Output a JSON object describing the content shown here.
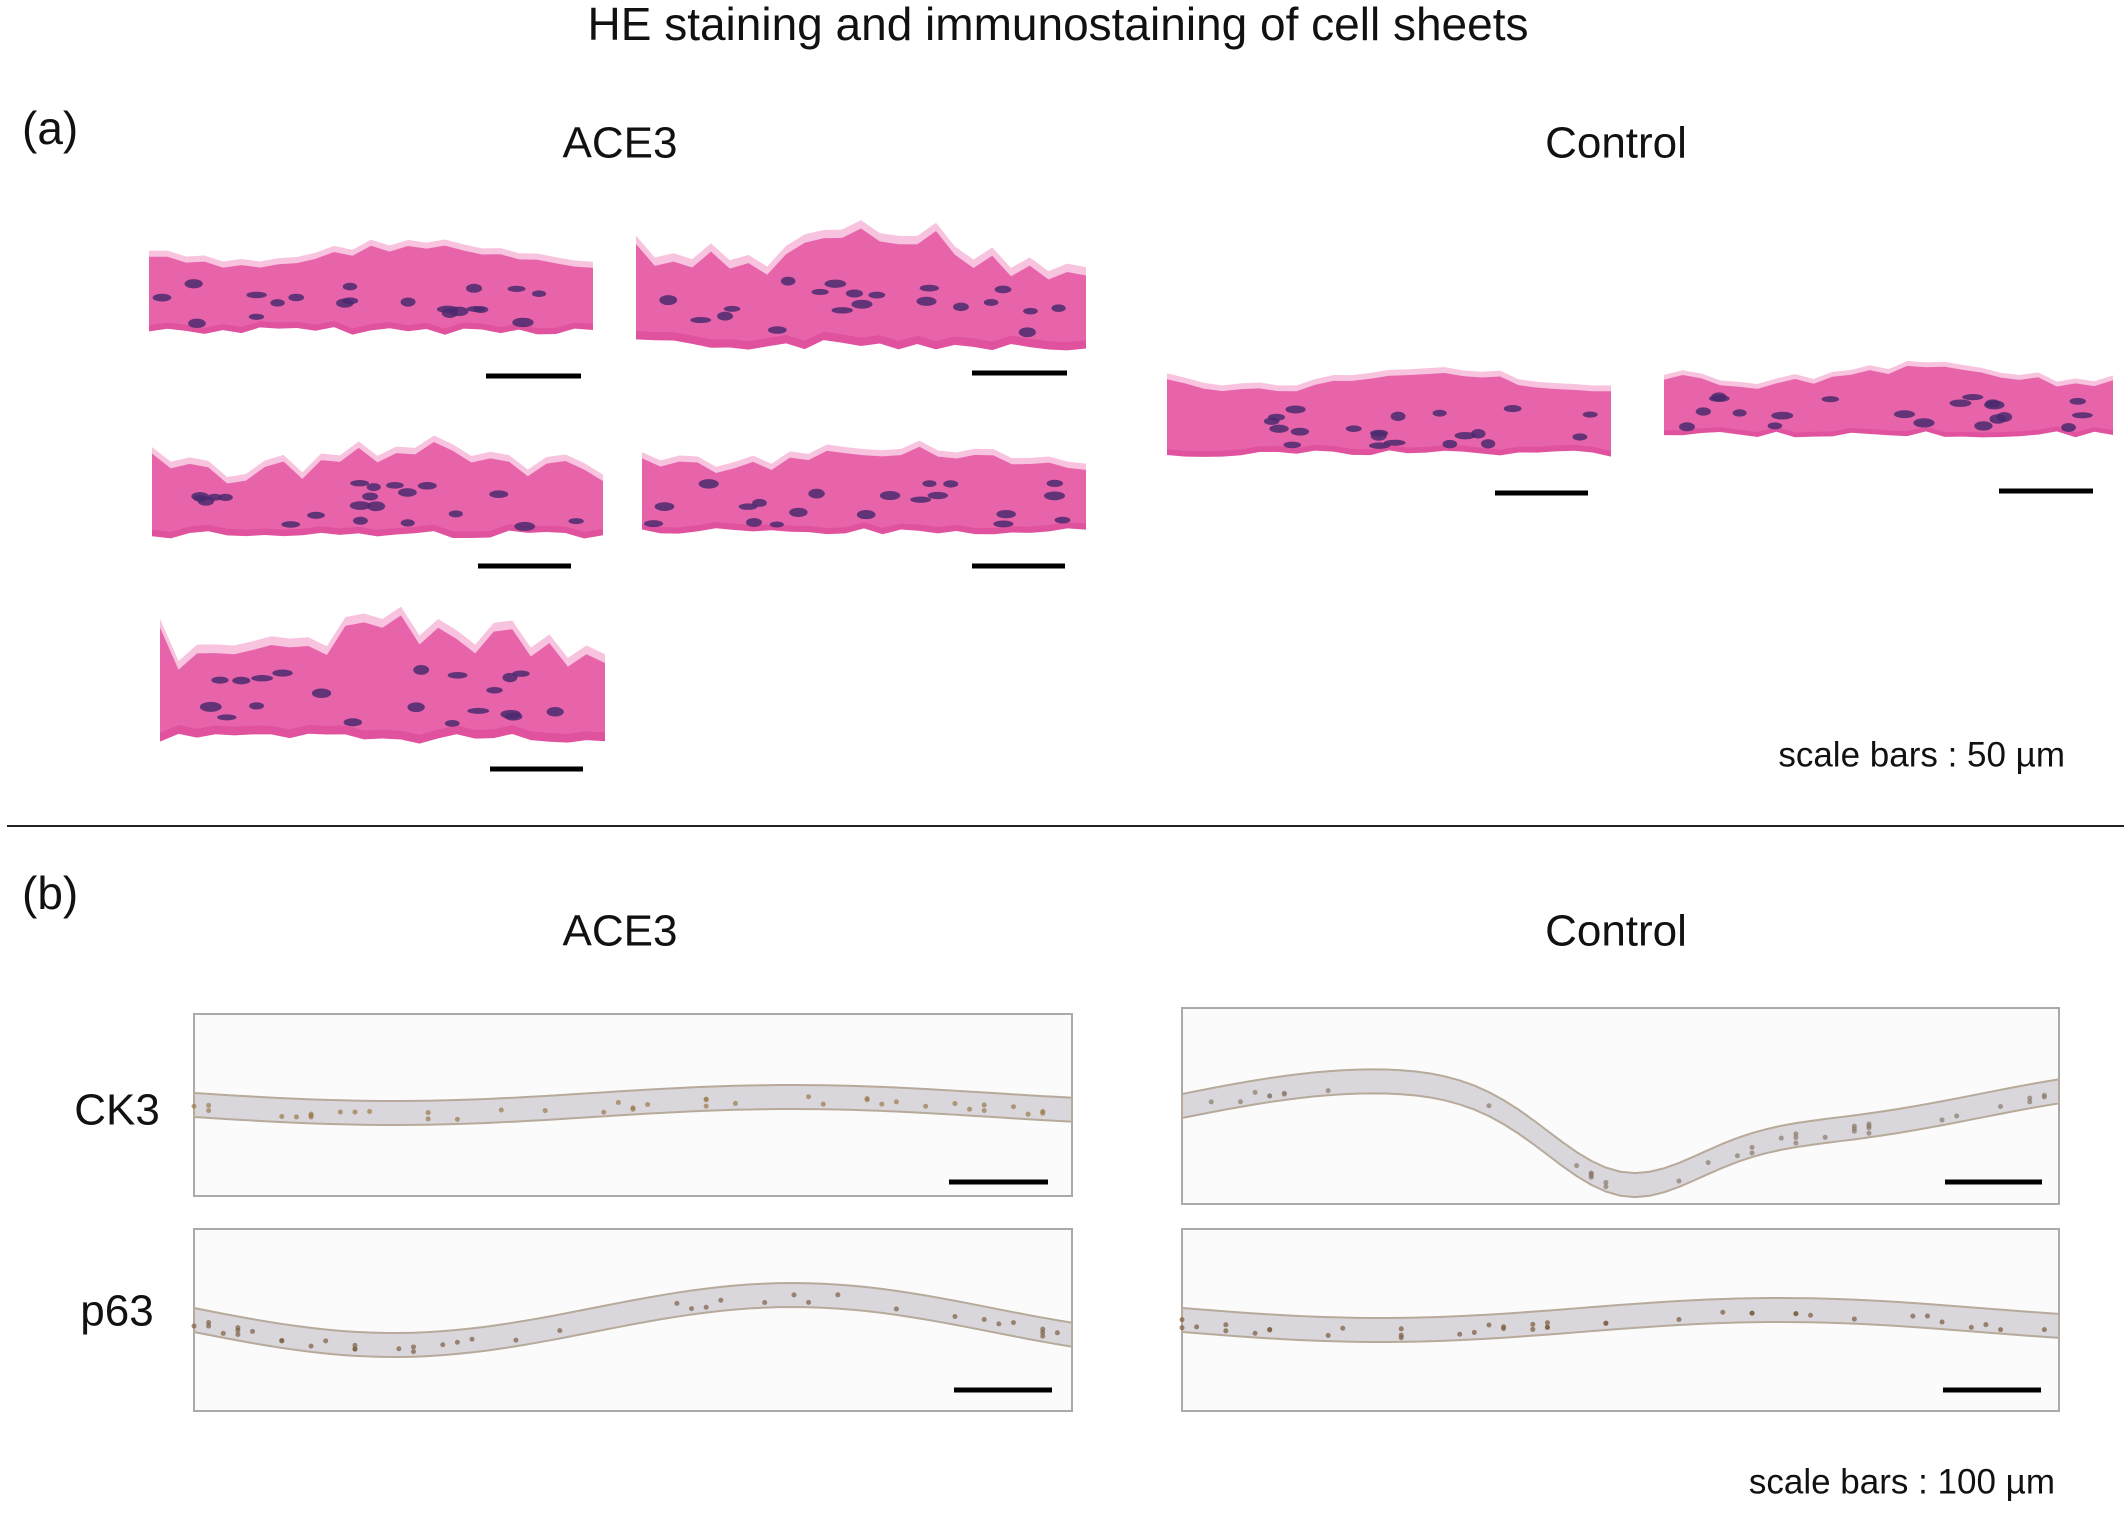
{
  "title": "HE staining and immunostaining of cell sheets",
  "panel_a": {
    "label": "(a)",
    "groups": [
      "ACE3",
      "Control"
    ],
    "scale_note": "scale bars : 50 µm"
  },
  "panel_b": {
    "label": "(b)",
    "groups": [
      "ACE3",
      "Control"
    ],
    "rows": [
      "CK3",
      "p63"
    ],
    "scale_note": "scale bars : 100 µm"
  }
}
